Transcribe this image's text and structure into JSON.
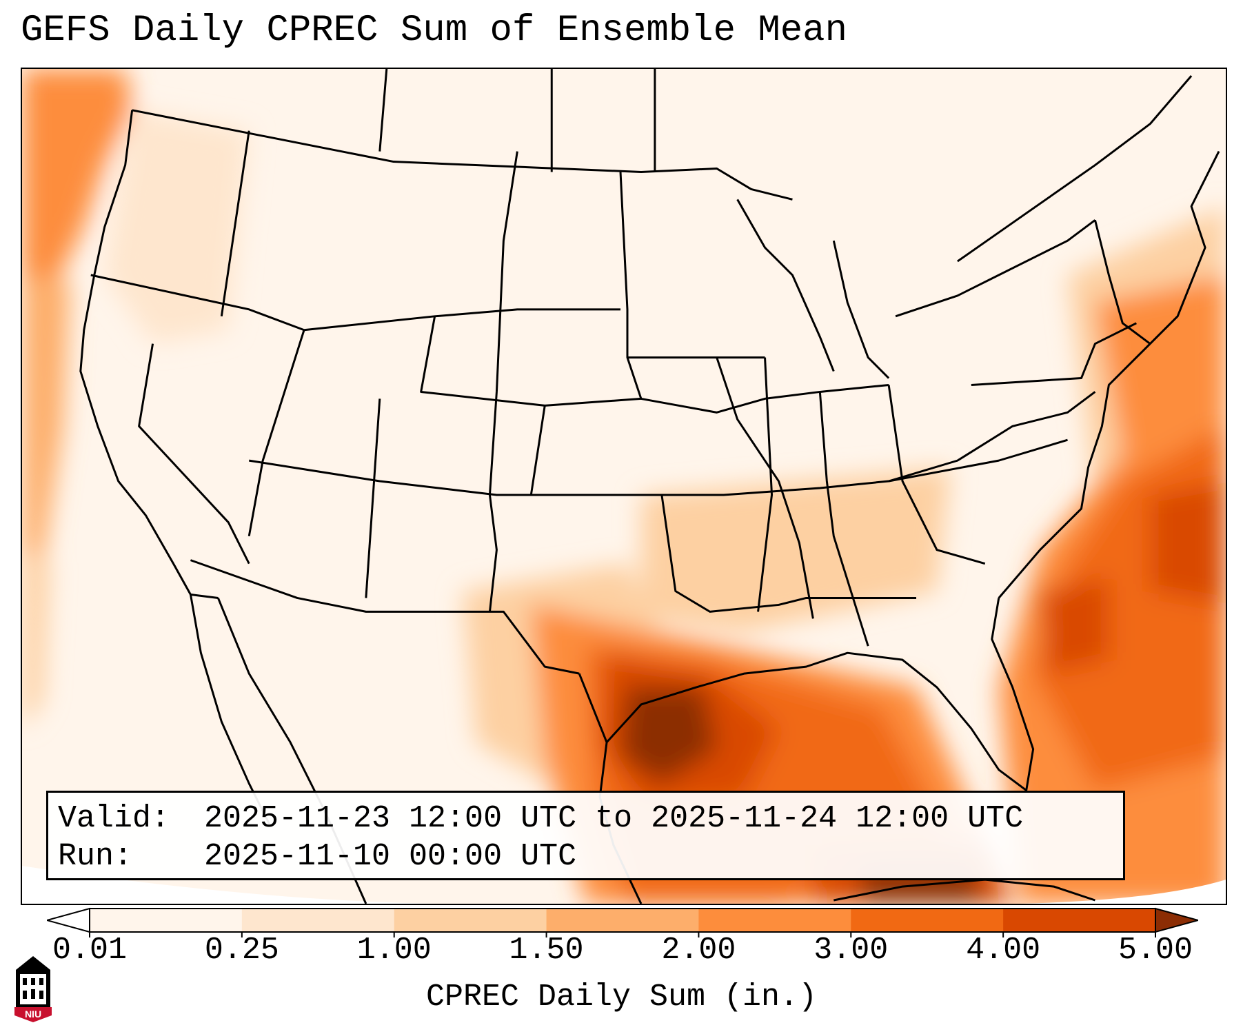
{
  "title": "GEFS Daily CPREC Sum of Ensemble Mean",
  "info": {
    "valid_label": "Valid:",
    "valid_value": "2025-11-23 12:00 UTC to 2025-11-24 12:00 UTC",
    "run_label": "Run:",
    "run_value": "2025-11-10 00:00 UTC"
  },
  "colorbar": {
    "label": "CPREC Daily Sum (in.)",
    "ticks": [
      "0.01",
      "0.25",
      "1.00",
      "1.50",
      "2.00",
      "3.00",
      "4.00",
      "5.00"
    ],
    "colors": [
      "#fff5eb",
      "#fee6ce",
      "#fdd0a2",
      "#fdae6b",
      "#fd8d3c",
      "#f16913",
      "#d94801",
      "#8c2d04"
    ],
    "under_color": "#ffffff",
    "over_color": "#8c2d04"
  },
  "logo": {
    "text": "NIU",
    "colors": [
      "#c8102e",
      "#000000"
    ]
  },
  "map": {
    "projection": "lambert-conformal",
    "region": "CONUS",
    "coastline_color": "#000000"
  }
}
